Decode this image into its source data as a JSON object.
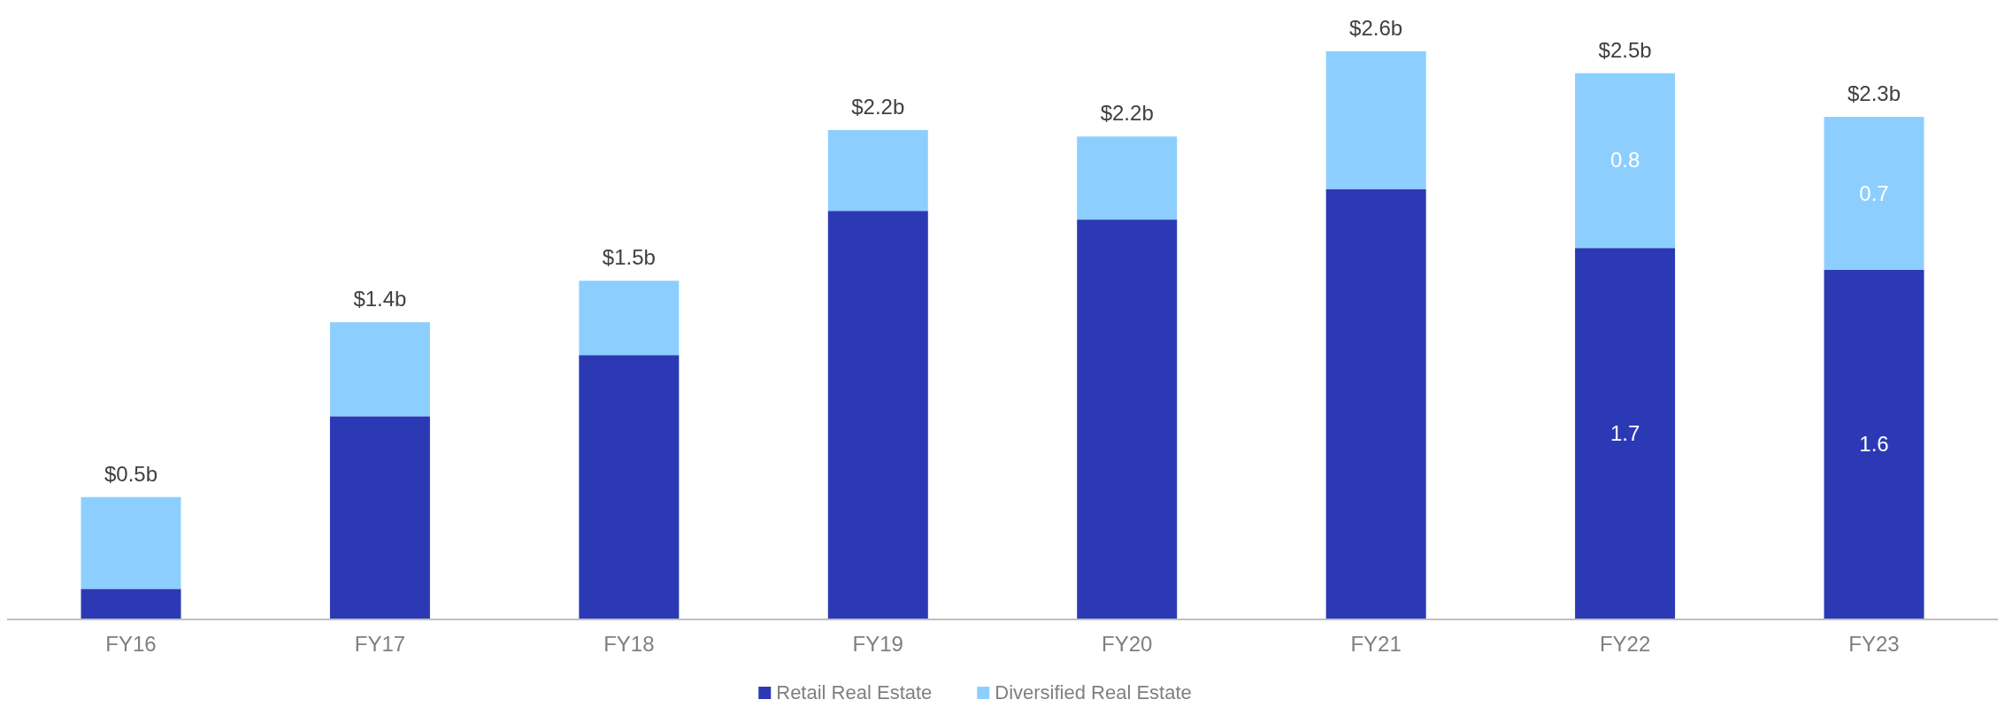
{
  "chart_data": {
    "type": "bar",
    "stacked": true,
    "categories": [
      "FY16",
      "FY17",
      "FY18",
      "FY19",
      "FY20",
      "FY21",
      "FY22",
      "FY23"
    ],
    "series": [
      {
        "name": "Retail Real Estate",
        "color": "#2b3ab4",
        "values": [
          0.14,
          0.93,
          1.21,
          1.87,
          1.83,
          1.97,
          1.7,
          1.6
        ],
        "value_labels": [
          null,
          null,
          null,
          null,
          null,
          null,
          "1.7",
          "1.6"
        ]
      },
      {
        "name": "Diversified Real Estate",
        "color": "#8ccfff",
        "values": [
          0.42,
          0.43,
          0.34,
          0.37,
          0.38,
          0.63,
          0.8,
          0.7
        ],
        "value_labels": [
          null,
          null,
          null,
          null,
          null,
          null,
          "0.8",
          "0.7"
        ]
      }
    ],
    "totals": [
      "$0.5b",
      "$1.4b",
      "$1.5b",
      "$2.2b",
      "$2.2b",
      "$2.6b",
      "$2.5b",
      "$2.3b"
    ],
    "legend": "bottom",
    "grid": false
  }
}
